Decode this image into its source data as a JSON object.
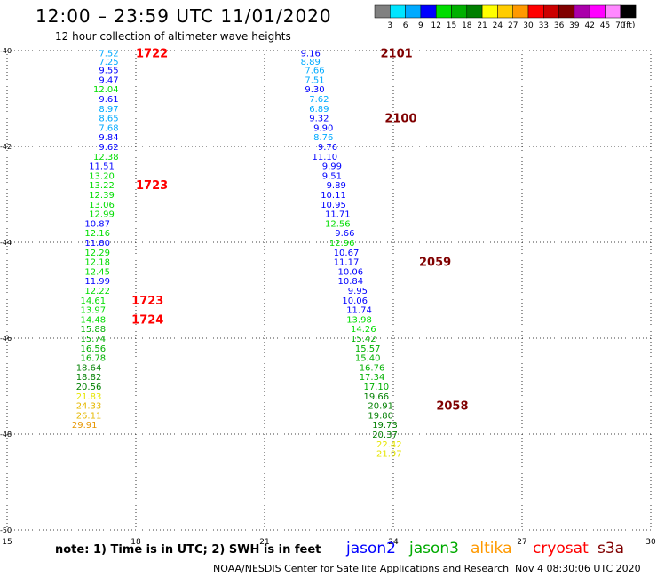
{
  "header": {
    "title": "12:00 – 23:59 UTC 11/01/2020",
    "subtitle": "12 hour collection of altimeter wave heights"
  },
  "legend": {
    "unit": "(ft)",
    "colors": [
      "#808080",
      "#00e5ff",
      "#00aaff",
      "#0000ff",
      "#00dd00",
      "#00b000",
      "#007f00",
      "#ffff00",
      "#ffcc00",
      "#ff9900",
      "#ff0000",
      "#cc0000",
      "#800000",
      "#aa00aa",
      "#ff00ff",
      "#ff88ff",
      "#000000"
    ],
    "labels": [
      "3",
      "6",
      "9",
      "12",
      "15",
      "18",
      "21",
      "24",
      "27",
      "30",
      "33",
      "36",
      "39",
      "42",
      "45",
      "70"
    ]
  },
  "map": {
    "lon_range": [
      15,
      30
    ],
    "lat_range": [
      -50,
      -40
    ],
    "x_ticks": [
      "15",
      "18",
      "21",
      "24",
      "27",
      "30"
    ],
    "x_tick_values": [
      15,
      18,
      21,
      24,
      27,
      30
    ],
    "y_ticks": [
      "-40",
      "-42",
      "-44",
      "-46",
      "-48",
      "-50"
    ],
    "y_tick_values": [
      -40,
      -42,
      -44,
      -46,
      -48,
      -50
    ]
  },
  "tracks": [
    {
      "name": "track-west",
      "points": [
        {
          "lon": 17.6,
          "lat": -40.05,
          "v": "7.52",
          "c": "#00aaff"
        },
        {
          "lon": 17.6,
          "lat": -40.22,
          "v": "7.25",
          "c": "#00aaff"
        },
        {
          "lon": 17.6,
          "lat": -40.4,
          "v": "9.55",
          "c": "#0000ff"
        },
        {
          "lon": 17.6,
          "lat": -40.6,
          "v": "9.47",
          "c": "#0000ff"
        },
        {
          "lon": 17.6,
          "lat": -40.8,
          "v": "12.04",
          "c": "#00dd00"
        },
        {
          "lon": 17.6,
          "lat": -41.0,
          "v": "9.61",
          "c": "#0000ff"
        },
        {
          "lon": 17.6,
          "lat": -41.2,
          "v": "8.97",
          "c": "#00aaff"
        },
        {
          "lon": 17.6,
          "lat": -41.4,
          "v": "8.65",
          "c": "#00aaff"
        },
        {
          "lon": 17.6,
          "lat": -41.6,
          "v": "7.68",
          "c": "#00aaff"
        },
        {
          "lon": 17.6,
          "lat": -41.8,
          "v": "9.84",
          "c": "#0000ff"
        },
        {
          "lon": 17.6,
          "lat": -42.0,
          "v": "9.62",
          "c": "#0000ff"
        },
        {
          "lon": 17.6,
          "lat": -42.2,
          "v": "12.38",
          "c": "#00dd00"
        },
        {
          "lon": 17.5,
          "lat": -42.4,
          "v": "11.51",
          "c": "#0000ff"
        },
        {
          "lon": 17.5,
          "lat": -42.6,
          "v": "13.20",
          "c": "#00dd00"
        },
        {
          "lon": 17.5,
          "lat": -42.8,
          "v": "13.22",
          "c": "#00dd00"
        },
        {
          "lon": 17.5,
          "lat": -43.0,
          "v": "12.39",
          "c": "#00dd00"
        },
        {
          "lon": 17.5,
          "lat": -43.2,
          "v": "13.06",
          "c": "#00dd00"
        },
        {
          "lon": 17.5,
          "lat": -43.4,
          "v": "12.99",
          "c": "#00dd00"
        },
        {
          "lon": 17.4,
          "lat": -43.6,
          "v": "10.87",
          "c": "#0000ff"
        },
        {
          "lon": 17.4,
          "lat": -43.8,
          "v": "12.16",
          "c": "#00dd00"
        },
        {
          "lon": 17.4,
          "lat": -44.0,
          "v": "11.80",
          "c": "#0000ff"
        },
        {
          "lon": 17.4,
          "lat": -44.2,
          "v": "12.29",
          "c": "#00dd00"
        },
        {
          "lon": 17.4,
          "lat": -44.4,
          "v": "12.18",
          "c": "#00dd00"
        },
        {
          "lon": 17.4,
          "lat": -44.6,
          "v": "12.45",
          "c": "#00dd00"
        },
        {
          "lon": 17.4,
          "lat": -44.8,
          "v": "11.99",
          "c": "#0000ff"
        },
        {
          "lon": 17.4,
          "lat": -45.0,
          "v": "12.22",
          "c": "#00dd00"
        },
        {
          "lon": 17.3,
          "lat": -45.2,
          "v": "14.61",
          "c": "#00dd00"
        },
        {
          "lon": 17.3,
          "lat": -45.4,
          "v": "13.97",
          "c": "#00dd00"
        },
        {
          "lon": 17.3,
          "lat": -45.6,
          "v": "14.48",
          "c": "#00dd00"
        },
        {
          "lon": 17.3,
          "lat": -45.8,
          "v": "15.88",
          "c": "#00b000"
        },
        {
          "lon": 17.3,
          "lat": -46.0,
          "v": "15.74",
          "c": "#00b000"
        },
        {
          "lon": 17.3,
          "lat": -46.2,
          "v": "16.56",
          "c": "#00b000"
        },
        {
          "lon": 17.3,
          "lat": -46.4,
          "v": "16.78",
          "c": "#00b000"
        },
        {
          "lon": 17.2,
          "lat": -46.6,
          "v": "18.64",
          "c": "#007f00"
        },
        {
          "lon": 17.2,
          "lat": -46.8,
          "v": "18.82",
          "c": "#007f00"
        },
        {
          "lon": 17.2,
          "lat": -47.0,
          "v": "20.56",
          "c": "#007f00"
        },
        {
          "lon": 17.2,
          "lat": -47.2,
          "v": "21.83",
          "c": "#e6e600"
        },
        {
          "lon": 17.2,
          "lat": -47.4,
          "v": "24.33",
          "c": "#e6b800"
        },
        {
          "lon": 17.2,
          "lat": -47.6,
          "v": "26.11",
          "c": "#e6b800"
        },
        {
          "lon": 17.1,
          "lat": -47.8,
          "v": "29.91",
          "c": "#e69500"
        }
      ]
    },
    {
      "name": "track-east",
      "points": [
        {
          "lon": 22.3,
          "lat": -40.05,
          "v": "9.16",
          "c": "#0000ff"
        },
        {
          "lon": 22.3,
          "lat": -40.22,
          "v": "8.89",
          "c": "#00aaff"
        },
        {
          "lon": 22.4,
          "lat": -40.4,
          "v": "7.66",
          "c": "#00aaff"
        },
        {
          "lon": 22.4,
          "lat": -40.6,
          "v": "7.51",
          "c": "#00aaff"
        },
        {
          "lon": 22.4,
          "lat": -40.8,
          "v": "9.30",
          "c": "#0000ff"
        },
        {
          "lon": 22.5,
          "lat": -41.0,
          "v": "7.62",
          "c": "#00aaff"
        },
        {
          "lon": 22.5,
          "lat": -41.2,
          "v": "6.89",
          "c": "#00aaff"
        },
        {
          "lon": 22.5,
          "lat": -41.4,
          "v": "9.32",
          "c": "#0000ff"
        },
        {
          "lon": 22.6,
          "lat": -41.6,
          "v": "9.90",
          "c": "#0000ff"
        },
        {
          "lon": 22.6,
          "lat": -41.8,
          "v": "8.76",
          "c": "#00aaff"
        },
        {
          "lon": 22.7,
          "lat": -42.0,
          "v": "9.76",
          "c": "#0000ff"
        },
        {
          "lon": 22.7,
          "lat": -42.2,
          "v": "11.10",
          "c": "#0000ff"
        },
        {
          "lon": 22.8,
          "lat": -42.4,
          "v": "9.99",
          "c": "#0000ff"
        },
        {
          "lon": 22.8,
          "lat": -42.6,
          "v": "9.51",
          "c": "#0000ff"
        },
        {
          "lon": 22.9,
          "lat": -42.8,
          "v": "9.89",
          "c": "#0000ff"
        },
        {
          "lon": 22.9,
          "lat": -43.0,
          "v": "10.11",
          "c": "#0000ff"
        },
        {
          "lon": 22.9,
          "lat": -43.2,
          "v": "10.95",
          "c": "#0000ff"
        },
        {
          "lon": 23.0,
          "lat": -43.4,
          "v": "11.71",
          "c": "#0000ff"
        },
        {
          "lon": 23.0,
          "lat": -43.6,
          "v": "12.56",
          "c": "#00dd00"
        },
        {
          "lon": 23.1,
          "lat": -43.8,
          "v": "9.66",
          "c": "#0000ff"
        },
        {
          "lon": 23.1,
          "lat": -44.0,
          "v": "12.96",
          "c": "#00dd00"
        },
        {
          "lon": 23.2,
          "lat": -44.2,
          "v": "10.67",
          "c": "#0000ff"
        },
        {
          "lon": 23.2,
          "lat": -44.4,
          "v": "11.17",
          "c": "#0000ff"
        },
        {
          "lon": 23.3,
          "lat": -44.6,
          "v": "10.06",
          "c": "#0000ff"
        },
        {
          "lon": 23.3,
          "lat": -44.8,
          "v": "10.84",
          "c": "#0000ff"
        },
        {
          "lon": 23.4,
          "lat": -45.0,
          "v": "9.95",
          "c": "#0000ff"
        },
        {
          "lon": 23.4,
          "lat": -45.2,
          "v": "10.06",
          "c": "#0000ff"
        },
        {
          "lon": 23.5,
          "lat": -45.4,
          "v": "11.74",
          "c": "#0000ff"
        },
        {
          "lon": 23.5,
          "lat": -45.6,
          "v": "13.98",
          "c": "#00dd00"
        },
        {
          "lon": 23.6,
          "lat": -45.8,
          "v": "14.26",
          "c": "#00dd00"
        },
        {
          "lon": 23.6,
          "lat": -46.0,
          "v": "15.42",
          "c": "#00b000"
        },
        {
          "lon": 23.7,
          "lat": -46.2,
          "v": "15.57",
          "c": "#00b000"
        },
        {
          "lon": 23.7,
          "lat": -46.4,
          "v": "15.40",
          "c": "#00b000"
        },
        {
          "lon": 23.8,
          "lat": -46.6,
          "v": "16.76",
          "c": "#00b000"
        },
        {
          "lon": 23.8,
          "lat": -46.8,
          "v": "17.34",
          "c": "#00b000"
        },
        {
          "lon": 23.9,
          "lat": -47.0,
          "v": "17.10",
          "c": "#00b000"
        },
        {
          "lon": 23.9,
          "lat": -47.2,
          "v": "19.66",
          "c": "#007f00"
        },
        {
          "lon": 24.0,
          "lat": -47.4,
          "v": "20.91",
          "c": "#007f00"
        },
        {
          "lon": 24.0,
          "lat": -47.6,
          "v": "19.80",
          "c": "#007f00"
        },
        {
          "lon": 24.1,
          "lat": -47.8,
          "v": "19.73",
          "c": "#007f00"
        },
        {
          "lon": 24.1,
          "lat": -48.0,
          "v": "20.37",
          "c": "#007f00"
        },
        {
          "lon": 24.2,
          "lat": -48.2,
          "v": "22.42",
          "c": "#e6e600"
        },
        {
          "lon": 24.2,
          "lat": -48.4,
          "v": "21.97",
          "c": "#e6e600"
        }
      ]
    }
  ],
  "time_labels": [
    {
      "lon": 18.0,
      "lat": -40.05,
      "text": "1722",
      "c": "#ff0000"
    },
    {
      "lon": 18.0,
      "lat": -42.8,
      "text": "1723",
      "c": "#ff0000"
    },
    {
      "lon": 17.9,
      "lat": -45.2,
      "text": "1723",
      "c": "#ff0000"
    },
    {
      "lon": 17.9,
      "lat": -45.6,
      "text": "1724",
      "c": "#ff0000"
    },
    {
      "lon": 23.7,
      "lat": -40.05,
      "text": "2101",
      "c": "#800000"
    },
    {
      "lon": 23.8,
      "lat": -41.4,
      "text": "2100",
      "c": "#800000"
    },
    {
      "lon": 24.6,
      "lat": -44.4,
      "text": "2059",
      "c": "#800000"
    },
    {
      "lon": 25.0,
      "lat": -47.4,
      "text": "2058",
      "c": "#800000"
    }
  ],
  "footer": {
    "note": "note:  1) Time is in UTC;  2) SWH is in feet",
    "satellites": [
      {
        "name": "jason2",
        "color": "#0000ff"
      },
      {
        "name": "jason3",
        "color": "#00aa00"
      },
      {
        "name": "altika",
        "color": "#ff9900"
      },
      {
        "name": "cryosat",
        "color": "#ff0000"
      },
      {
        "name": "s3a",
        "color": "#800000"
      }
    ],
    "credit": "NOAA/NESDIS Center for Satellite Applications and Research",
    "timestamp": "Nov  4 08:30:06 UTC 2020"
  }
}
